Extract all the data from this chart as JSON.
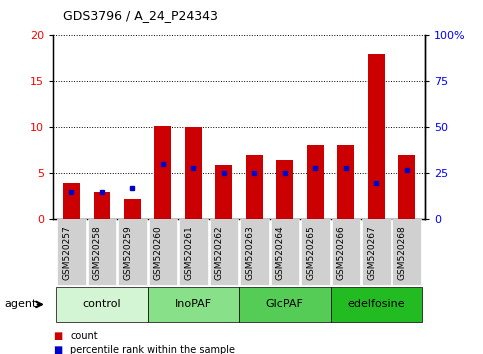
{
  "title": "GDS3796 / A_24_P24343",
  "samples": [
    "GSM520257",
    "GSM520258",
    "GSM520259",
    "GSM520260",
    "GSM520261",
    "GSM520262",
    "GSM520263",
    "GSM520264",
    "GSM520265",
    "GSM520266",
    "GSM520267",
    "GSM520268"
  ],
  "counts": [
    4.0,
    3.0,
    2.2,
    10.2,
    10.1,
    5.9,
    7.0,
    6.5,
    8.1,
    8.1,
    18.0,
    7.0
  ],
  "percentiles": [
    15,
    15,
    17,
    30,
    28,
    25,
    25,
    25,
    28,
    28,
    20,
    27
  ],
  "groups": [
    {
      "label": "control",
      "start": 0,
      "end": 2,
      "color": "#d4f5d4"
    },
    {
      "label": "InoPAF",
      "start": 3,
      "end": 5,
      "color": "#88e088"
    },
    {
      "label": "GlcPAF",
      "start": 6,
      "end": 8,
      "color": "#55cc55"
    },
    {
      "label": "edelfosine",
      "start": 9,
      "end": 11,
      "color": "#22bb22"
    }
  ],
  "bar_color": "#cc0000",
  "dot_color": "#0000cc",
  "ylim_left": [
    0,
    20
  ],
  "ylim_right": [
    0,
    100
  ],
  "yticks_left": [
    0,
    5,
    10,
    15,
    20
  ],
  "yticks_right": [
    0,
    25,
    50,
    75,
    100
  ],
  "yticklabels_right": [
    "0",
    "25",
    "50",
    "75",
    "100%"
  ],
  "plot_bg": "#ffffff",
  "xtick_bg": "#d0d0d0",
  "legend_count_label": "count",
  "legend_pct_label": "percentile rank within the sample"
}
